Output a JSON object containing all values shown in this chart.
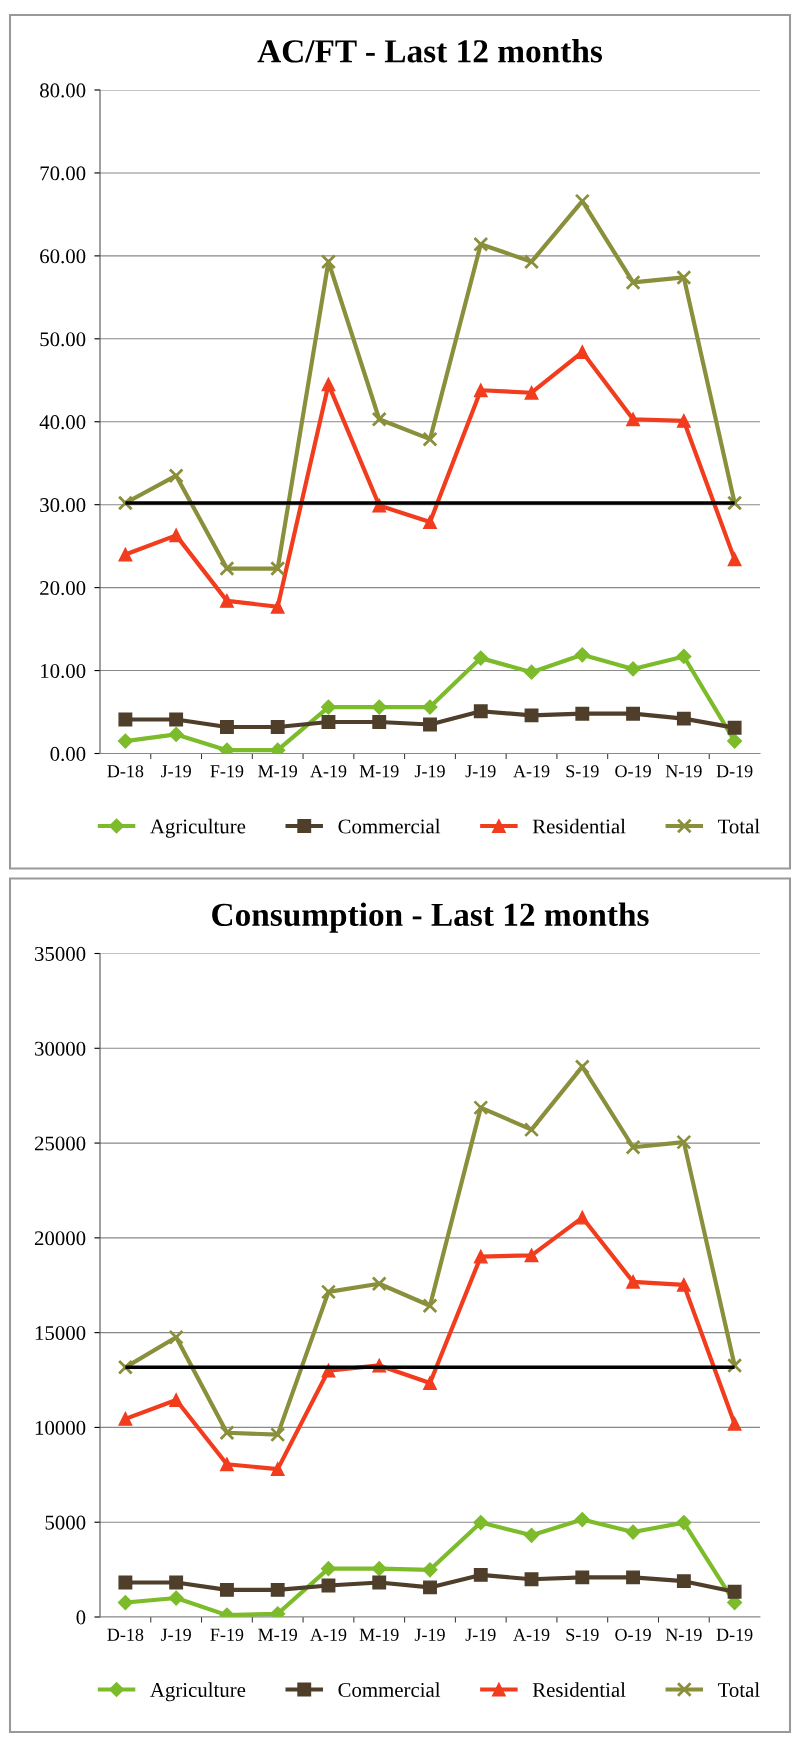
{
  "chart_data": [
    {
      "type": "line",
      "title": "AC/FT - Last 12 months",
      "categories": [
        "D-18",
        "J-19",
        "F-19",
        "M-19",
        "A-19",
        "M-19",
        "J-19",
        "J-19",
        "A-19",
        "S-19",
        "O-19",
        "N-19",
        "D-19"
      ],
      "series": [
        {
          "name": "Agriculture",
          "color": "#7cbb2a",
          "marker": "diamond",
          "values": [
            1.5,
            2.3,
            0.4,
            0.4,
            5.6,
            5.6,
            5.6,
            11.5,
            9.8,
            11.9,
            10.2,
            11.7,
            1.5
          ]
        },
        {
          "name": "Commercial",
          "color": "#4e3e2a",
          "marker": "square",
          "values": [
            4.1,
            4.1,
            3.2,
            3.2,
            3.8,
            3.8,
            3.5,
            5.1,
            4.6,
            4.8,
            4.8,
            4.2,
            3.1
          ]
        },
        {
          "name": "Residential",
          "color": "#f23c1e",
          "marker": "triangle",
          "values": [
            24.0,
            26.3,
            18.4,
            17.7,
            44.5,
            29.9,
            27.9,
            43.8,
            43.5,
            48.4,
            40.3,
            40.1,
            23.4
          ]
        },
        {
          "name": "Total",
          "color": "#8a8f3c",
          "marker": "cross",
          "values": [
            30.2,
            33.5,
            22.3,
            22.3,
            59.3,
            40.3,
            37.9,
            61.4,
            59.3,
            66.6,
            56.8,
            57.4,
            30.2
          ]
        }
      ],
      "ylim": [
        0,
        80
      ],
      "yticks": [
        {
          "value": 0,
          "label": "0.00"
        },
        {
          "value": 10,
          "label": "10.00"
        },
        {
          "value": 20,
          "label": "20.00"
        },
        {
          "value": 30,
          "label": "30.00"
        },
        {
          "value": 40,
          "label": "40.00"
        },
        {
          "value": 50,
          "label": "50.00"
        },
        {
          "value": 60,
          "label": "60.00"
        },
        {
          "value": 70,
          "label": "70.00"
        },
        {
          "value": 80,
          "label": "80.00"
        }
      ],
      "grid": "y",
      "legend": "bottom",
      "ref_lines": [
        {
          "axis": "y",
          "value": 30.2,
          "color": "#000000"
        }
      ]
    },
    {
      "type": "line",
      "title": "Consumption - Last 12 months",
      "categories": [
        "D-18",
        "J-19",
        "F-19",
        "M-19",
        "A-19",
        "M-19",
        "J-19",
        "J-19",
        "A-19",
        "S-19",
        "O-19",
        "N-19",
        "D-19"
      ],
      "series": [
        {
          "name": "Agriculture",
          "color": "#7cbb2a",
          "marker": "diamond",
          "values": [
            760,
            1000,
            100,
            170,
            2550,
            2550,
            2490,
            4980,
            4310,
            5140,
            4480,
            4980,
            760
          ]
        },
        {
          "name": "Commercial",
          "color": "#4e3e2a",
          "marker": "square",
          "values": [
            1820,
            1820,
            1430,
            1430,
            1660,
            1820,
            1560,
            2220,
            1990,
            2090,
            2090,
            1890,
            1330
          ]
        },
        {
          "name": "Residential",
          "color": "#f23c1e",
          "marker": "triangle",
          "values": [
            10450,
            11450,
            8060,
            7800,
            13000,
            13270,
            12340,
            19010,
            19080,
            21070,
            17680,
            17520,
            10190
          ]
        },
        {
          "name": "Total",
          "color": "#8a8f3c",
          "marker": "cross",
          "values": [
            13170,
            14760,
            9720,
            9620,
            17150,
            17580,
            16420,
            26870,
            25710,
            29030,
            24780,
            25050,
            13270
          ]
        }
      ],
      "ylim": [
        0,
        35000
      ],
      "yticks": [
        0,
        5000,
        10000,
        15000,
        20000,
        25000,
        30000,
        35000
      ],
      "grid": "y",
      "legend": "bottom",
      "ref_lines": [
        {
          "axis": "y",
          "value": 13170,
          "color": "#000000"
        }
      ]
    }
  ]
}
